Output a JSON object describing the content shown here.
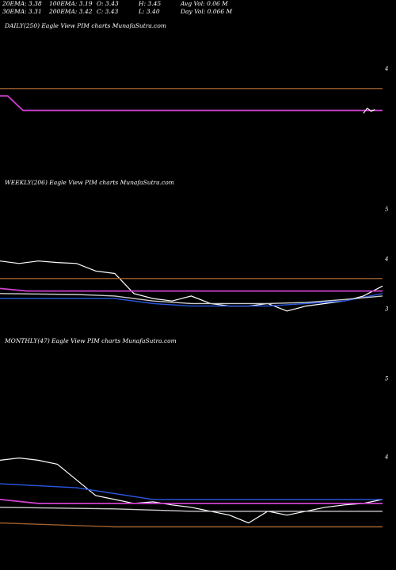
{
  "header": {
    "row1": [
      "20EMA: 3.38",
      "100EMA: 3.19",
      "O: 3.43",
      "H: 3.45",
      "Avg Vol: 0.06  M"
    ],
    "row2": [
      "30EMA: 3.31",
      "200EMA: 3.42",
      "C: 3.43",
      "L: 3.40",
      "Day Vol: 0.066  M"
    ]
  },
  "colors": {
    "background": "#000000",
    "price": "#ffffff",
    "ema_short": "#2a58e6",
    "ema_long": "#d040d0",
    "band": "#cccccc",
    "slow_line": "#a06030"
  },
  "chart_data": [
    {
      "type": "line",
      "title": "DAILY(250) Eagle  View  PIM charts MunafaSutra.com",
      "yticks": [
        {
          "label": "4",
          "value": 4
        }
      ],
      "ylim": [
        2.6,
        4.5
      ],
      "series": [
        {
          "color_key": "ema_long",
          "x": [
            0,
            0.02,
            0.06,
            1
          ],
          "values": [
            3.62,
            3.62,
            3.42,
            3.42
          ]
        },
        {
          "color_key": "slow_line",
          "x": [
            0,
            1
          ],
          "values": [
            3.72,
            3.72
          ]
        },
        {
          "color_key": "price",
          "x": [
            0.95,
            0.96,
            0.97,
            0.98
          ],
          "values": [
            3.38,
            3.45,
            3.41,
            3.43
          ]
        }
      ]
    },
    {
      "type": "line",
      "title": "WEEKLY(206) Eagle  View  PIM charts MunafaSutra.com",
      "yticks": [
        {
          "label": "5",
          "value": 5
        },
        {
          "label": "4",
          "value": 4
        },
        {
          "label": "3",
          "value": 3
        }
      ],
      "ylim": [
        2.6,
        5.4
      ],
      "series": [
        {
          "color_key": "price",
          "x": [
            0,
            0.05,
            0.1,
            0.15,
            0.2,
            0.25,
            0.3,
            0.35,
            0.4,
            0.45,
            0.5,
            0.55,
            0.6,
            0.65,
            0.7,
            0.75,
            0.8,
            0.85,
            0.9,
            0.95,
            1
          ],
          "values": [
            3.95,
            3.9,
            3.95,
            3.92,
            3.9,
            3.75,
            3.7,
            3.3,
            3.2,
            3.15,
            3.25,
            3.1,
            3.05,
            3.05,
            3.1,
            2.95,
            3.05,
            3.1,
            3.15,
            3.25,
            3.45
          ]
        },
        {
          "color_key": "ema_long",
          "x": [
            0,
            0.07,
            0.3,
            1
          ],
          "values": [
            3.4,
            3.35,
            3.35,
            3.35
          ]
        },
        {
          "color_key": "ema_short",
          "x": [
            0,
            0.2,
            0.3,
            0.4,
            0.5,
            0.6,
            0.7,
            0.8,
            0.9,
            1
          ],
          "values": [
            3.2,
            3.2,
            3.2,
            3.1,
            3.05,
            3.05,
            3.05,
            3.1,
            3.15,
            3.3
          ]
        },
        {
          "color_key": "band",
          "x": [
            0,
            0.2,
            0.3,
            0.4,
            0.5,
            0.6,
            0.7,
            0.8,
            0.9,
            1
          ],
          "values": [
            3.3,
            3.28,
            3.25,
            3.15,
            3.1,
            3.1,
            3.1,
            3.12,
            3.18,
            3.25
          ]
        },
        {
          "color_key": "slow_line",
          "x": [
            0,
            1
          ],
          "values": [
            3.6,
            3.6
          ]
        }
      ]
    },
    {
      "type": "line",
      "title": "MONTHLY(47) Eagle  View  PIM charts MunafaSutra.com",
      "yticks": [
        {
          "label": "5",
          "value": 5
        },
        {
          "label": "4",
          "value": 4
        }
      ],
      "ylim": [
        2.6,
        5.4
      ],
      "series": [
        {
          "color_key": "price",
          "x": [
            0,
            0.05,
            0.1,
            0.15,
            0.2,
            0.25,
            0.3,
            0.35,
            0.4,
            0.45,
            0.5,
            0.55,
            0.6,
            0.65,
            0.7,
            0.75,
            0.8,
            0.85,
            0.9,
            0.95,
            1
          ],
          "values": [
            3.95,
            3.98,
            3.95,
            3.9,
            3.7,
            3.5,
            3.45,
            3.4,
            3.42,
            3.38,
            3.35,
            3.3,
            3.25,
            3.15,
            3.3,
            3.25,
            3.3,
            3.35,
            3.38,
            3.4,
            3.45
          ]
        },
        {
          "color_key": "ema_long",
          "x": [
            0,
            0.1,
            0.3,
            1
          ],
          "values": [
            3.45,
            3.4,
            3.4,
            3.4
          ]
        },
        {
          "color_key": "ema_short",
          "x": [
            0,
            0.2,
            0.4,
            1
          ],
          "values": [
            3.65,
            3.6,
            3.45,
            3.45
          ]
        },
        {
          "color_key": "band",
          "x": [
            0,
            0.3,
            0.5,
            1
          ],
          "values": [
            3.35,
            3.33,
            3.3,
            3.3
          ]
        },
        {
          "color_key": "slow_line",
          "x": [
            0,
            0.3,
            1
          ],
          "values": [
            3.15,
            3.1,
            3.1
          ]
        }
      ]
    }
  ]
}
